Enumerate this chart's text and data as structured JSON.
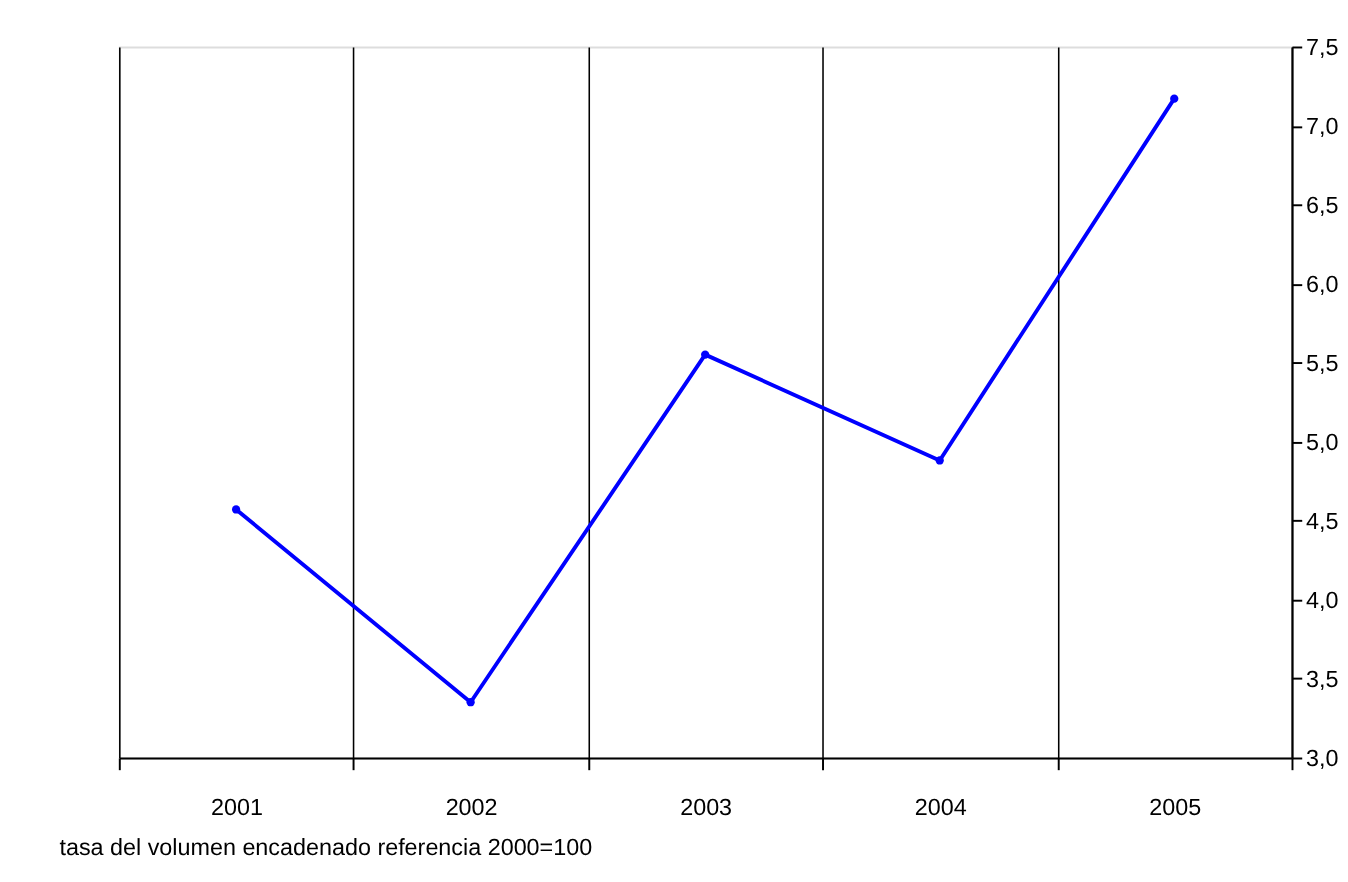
{
  "chart_data": {
    "type": "line",
    "categories": [
      "2001",
      "2002",
      "2003",
      "2004",
      "2005"
    ],
    "series": [
      {
        "color": "#0000ff",
        "values": [
          4.57,
          3.35,
          5.55,
          4.88,
          7.17
        ]
      }
    ],
    "ylim": [
      3.0,
      7.5
    ],
    "yticks": [
      {
        "value": 3.0,
        "label": "3,0"
      },
      {
        "value": 3.5,
        "label": "3,5"
      },
      {
        "value": 4.0,
        "label": "4,0"
      },
      {
        "value": 4.5,
        "label": "4,5"
      },
      {
        "value": 5.0,
        "label": "5,0"
      },
      {
        "value": 5.5,
        "label": "5,5"
      },
      {
        "value": 6.0,
        "label": "6,0"
      },
      {
        "value": 6.5,
        "label": "6,5"
      },
      {
        "value": 7.0,
        "label": "7,0"
      },
      {
        "value": 7.5,
        "label": "7,5"
      }
    ],
    "grid": "x",
    "marker": "circle",
    "line_style": "solid",
    "annotations": [
      "tasa del volumen encadenado referencia 2000=100"
    ]
  }
}
